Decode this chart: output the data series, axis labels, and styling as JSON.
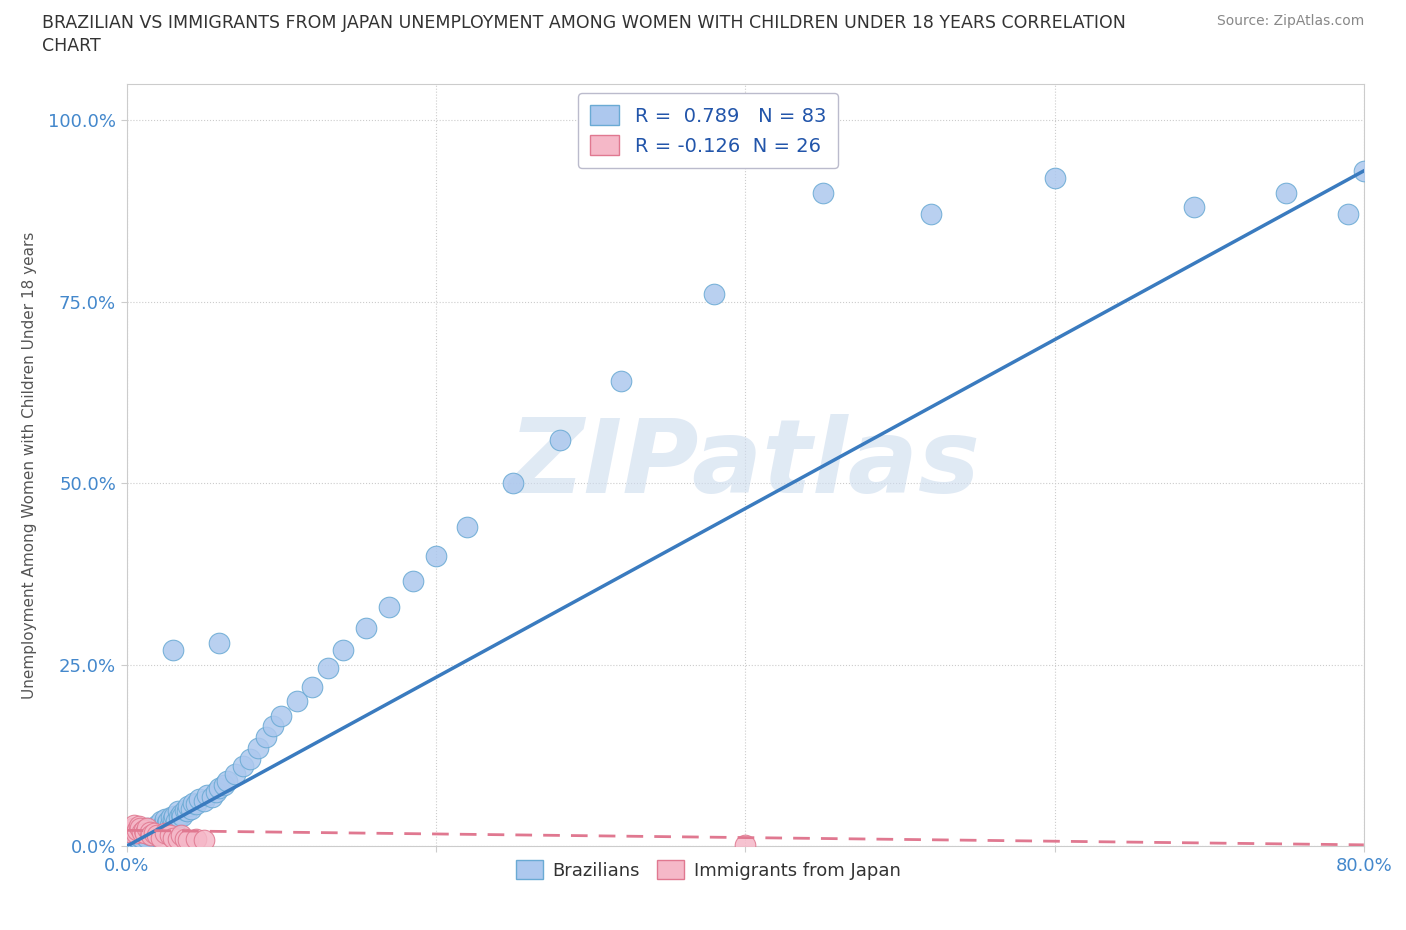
{
  "title_line1": "BRAZILIAN VS IMMIGRANTS FROM JAPAN UNEMPLOYMENT AMONG WOMEN WITH CHILDREN UNDER 18 YEARS CORRELATION",
  "title_line2": "CHART",
  "source": "Source: ZipAtlas.com",
  "ylabel": "Unemployment Among Women with Children Under 18 years",
  "xlim": [
    0.0,
    0.8
  ],
  "ylim": [
    0.0,
    1.05
  ],
  "xticks": [
    0.0,
    0.2,
    0.4,
    0.6,
    0.8
  ],
  "xticklabels": [
    "0.0%",
    "",
    "",
    "",
    "80.0%"
  ],
  "yticks": [
    0.0,
    0.25,
    0.5,
    0.75,
    1.0
  ],
  "yticklabels": [
    "0.0%",
    "25.0%",
    "50.0%",
    "75.0%",
    "100.0%"
  ],
  "brazil_color": "#adc8ee",
  "brazil_edge": "#6aaad4",
  "japan_color": "#f5b8c8",
  "japan_edge": "#e07890",
  "brazil_R": 0.789,
  "brazil_N": 83,
  "japan_R": -0.126,
  "japan_N": 26,
  "brazil_line_color": "#3a7bbf",
  "japan_line_color": "#e07890",
  "watermark": "ZIPatlas",
  "watermark_color": "#ccdcee",
  "brazil_x": [
    0.003,
    0.005,
    0.006,
    0.007,
    0.008,
    0.009,
    0.01,
    0.01,
    0.011,
    0.012,
    0.013,
    0.013,
    0.014,
    0.015,
    0.015,
    0.016,
    0.017,
    0.018,
    0.018,
    0.019,
    0.02,
    0.02,
    0.021,
    0.022,
    0.022,
    0.023,
    0.024,
    0.025,
    0.025,
    0.026,
    0.027,
    0.028,
    0.029,
    0.03,
    0.031,
    0.032,
    0.033,
    0.034,
    0.035,
    0.036,
    0.038,
    0.039,
    0.04,
    0.042,
    0.043,
    0.045,
    0.047,
    0.05,
    0.052,
    0.055,
    0.058,
    0.06,
    0.063,
    0.065,
    0.07,
    0.075,
    0.08,
    0.085,
    0.09,
    0.095,
    0.1,
    0.11,
    0.12,
    0.13,
    0.14,
    0.155,
    0.17,
    0.185,
    0.2,
    0.22,
    0.25,
    0.28,
    0.32,
    0.38,
    0.45,
    0.52,
    0.6,
    0.69,
    0.75,
    0.79,
    0.8,
    0.03,
    0.06
  ],
  "brazil_y": [
    0.01,
    0.015,
    0.008,
    0.012,
    0.01,
    0.013,
    0.012,
    0.02,
    0.015,
    0.018,
    0.012,
    0.025,
    0.018,
    0.015,
    0.022,
    0.02,
    0.018,
    0.015,
    0.025,
    0.02,
    0.018,
    0.03,
    0.022,
    0.025,
    0.035,
    0.028,
    0.03,
    0.025,
    0.038,
    0.032,
    0.035,
    0.03,
    0.04,
    0.038,
    0.042,
    0.035,
    0.048,
    0.04,
    0.045,
    0.042,
    0.05,
    0.048,
    0.055,
    0.052,
    0.06,
    0.058,
    0.065,
    0.062,
    0.07,
    0.068,
    0.075,
    0.08,
    0.085,
    0.09,
    0.1,
    0.11,
    0.12,
    0.135,
    0.15,
    0.165,
    0.18,
    0.2,
    0.22,
    0.245,
    0.27,
    0.3,
    0.33,
    0.365,
    0.4,
    0.44,
    0.5,
    0.56,
    0.64,
    0.76,
    0.9,
    0.87,
    0.92,
    0.88,
    0.9,
    0.87,
    0.93,
    0.27,
    0.28
  ],
  "japan_x": [
    0.002,
    0.004,
    0.005,
    0.006,
    0.007,
    0.008,
    0.009,
    0.01,
    0.011,
    0.012,
    0.013,
    0.015,
    0.016,
    0.018,
    0.02,
    0.022,
    0.025,
    0.028,
    0.03,
    0.033,
    0.035,
    0.038,
    0.04,
    0.045,
    0.05,
    0.4
  ],
  "japan_y": [
    0.02,
    0.025,
    0.03,
    0.018,
    0.022,
    0.028,
    0.025,
    0.02,
    0.022,
    0.018,
    0.025,
    0.02,
    0.015,
    0.018,
    0.015,
    0.012,
    0.018,
    0.015,
    0.012,
    0.01,
    0.015,
    0.01,
    0.008,
    0.01,
    0.008,
    0.002
  ],
  "brazil_line_x": [
    0.0,
    0.8
  ],
  "brazil_line_y": [
    0.0,
    0.93
  ],
  "japan_line_x": [
    0.0,
    0.8
  ],
  "japan_line_y": [
    0.022,
    0.002
  ]
}
